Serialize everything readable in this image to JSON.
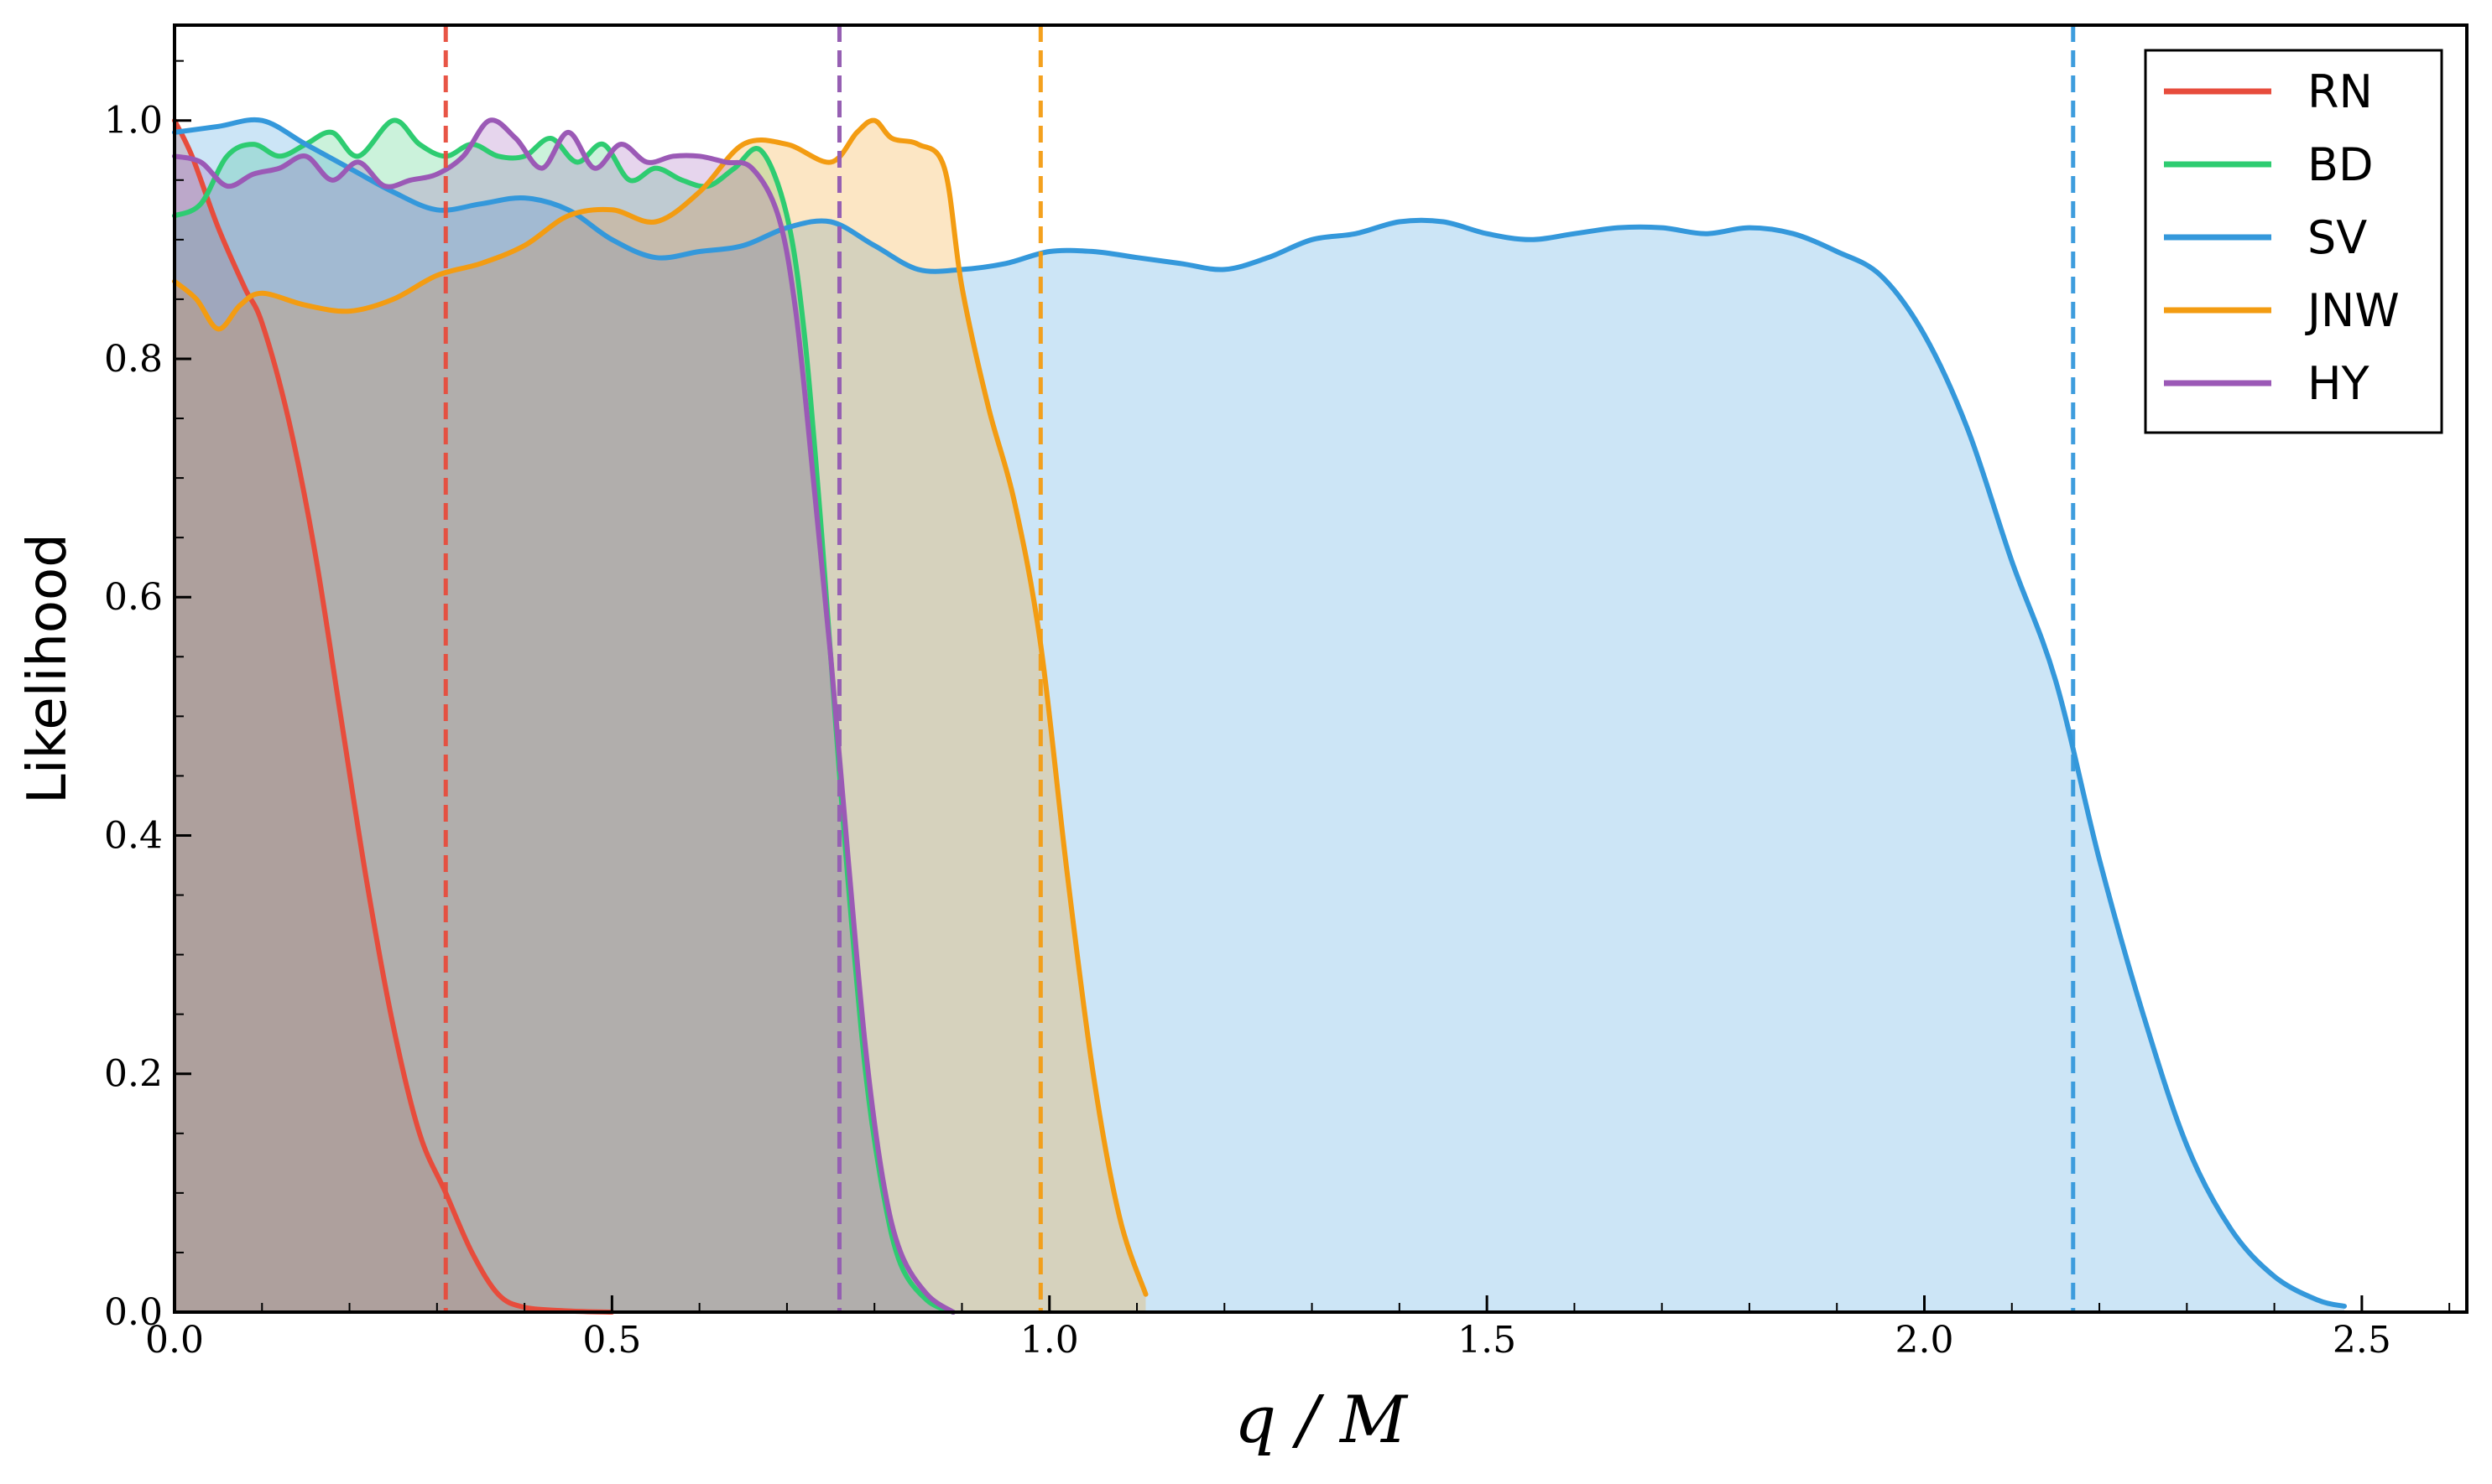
{
  "chart_data": {
    "type": "area",
    "xlabel": "q / M",
    "ylabel": "Likelihood",
    "xlim": [
      0,
      2.62
    ],
    "ylim": [
      0,
      1.08
    ],
    "x_ticks": [
      0.0,
      0.5,
      1.0,
      1.5,
      2.0,
      2.5
    ],
    "x_tick_labels": [
      "0.0",
      "0.5",
      "1.0",
      "1.5",
      "2.0",
      "2.5"
    ],
    "y_ticks": [
      0.0,
      0.2,
      0.4,
      0.6,
      0.8,
      1.0
    ],
    "y_tick_labels": [
      "0.0",
      "0.2",
      "0.4",
      "0.6",
      "0.8",
      "1.0"
    ],
    "legend_position": "top-right",
    "grid": false,
    "series": [
      {
        "name": "RN",
        "color": "#e74c3c",
        "threshold": 0.31,
        "x": [
          0.0,
          0.02,
          0.05,
          0.08,
          0.1,
          0.13,
          0.16,
          0.19,
          0.22,
          0.25,
          0.28,
          0.31,
          0.34,
          0.37,
          0.4,
          0.45,
          0.5
        ],
        "y": [
          1.0,
          0.97,
          0.91,
          0.86,
          0.83,
          0.75,
          0.64,
          0.5,
          0.36,
          0.24,
          0.15,
          0.1,
          0.05,
          0.015,
          0.004,
          0.001,
          0.0
        ]
      },
      {
        "name": "BD",
        "color": "#2ecc71",
        "threshold": 0.76,
        "x": [
          0.0,
          0.03,
          0.06,
          0.09,
          0.12,
          0.15,
          0.18,
          0.21,
          0.25,
          0.28,
          0.31,
          0.34,
          0.37,
          0.4,
          0.43,
          0.46,
          0.49,
          0.52,
          0.55,
          0.58,
          0.61,
          0.64,
          0.67,
          0.7,
          0.72,
          0.74,
          0.755,
          0.77,
          0.79,
          0.81,
          0.83,
          0.86,
          0.89
        ],
        "y": [
          0.92,
          0.93,
          0.97,
          0.98,
          0.97,
          0.98,
          0.99,
          0.97,
          1.0,
          0.98,
          0.97,
          0.98,
          0.97,
          0.97,
          0.985,
          0.965,
          0.98,
          0.95,
          0.96,
          0.95,
          0.945,
          0.96,
          0.975,
          0.92,
          0.82,
          0.65,
          0.5,
          0.36,
          0.2,
          0.1,
          0.04,
          0.01,
          0.0
        ]
      },
      {
        "name": "SV",
        "color": "#3498db",
        "threshold": 2.17,
        "x": [
          0.0,
          0.05,
          0.1,
          0.15,
          0.2,
          0.25,
          0.3,
          0.35,
          0.4,
          0.45,
          0.5,
          0.55,
          0.6,
          0.65,
          0.7,
          0.75,
          0.8,
          0.85,
          0.9,
          0.95,
          1.0,
          1.05,
          1.1,
          1.15,
          1.2,
          1.25,
          1.3,
          1.35,
          1.4,
          1.45,
          1.5,
          1.55,
          1.6,
          1.65,
          1.7,
          1.75,
          1.8,
          1.85,
          1.9,
          1.95,
          2.0,
          2.05,
          2.1,
          2.15,
          2.2,
          2.25,
          2.3,
          2.35,
          2.4,
          2.45,
          2.48
        ],
        "y": [
          0.99,
          0.995,
          1.0,
          0.98,
          0.96,
          0.94,
          0.925,
          0.93,
          0.935,
          0.925,
          0.9,
          0.885,
          0.89,
          0.895,
          0.91,
          0.915,
          0.895,
          0.875,
          0.875,
          0.88,
          0.89,
          0.89,
          0.885,
          0.88,
          0.875,
          0.885,
          0.9,
          0.905,
          0.915,
          0.915,
          0.905,
          0.9,
          0.905,
          0.91,
          0.91,
          0.905,
          0.91,
          0.905,
          0.89,
          0.87,
          0.82,
          0.74,
          0.63,
          0.53,
          0.38,
          0.25,
          0.14,
          0.07,
          0.03,
          0.01,
          0.005
        ]
      },
      {
        "name": "JNW",
        "color": "#f39c12",
        "threshold": 0.99,
        "x": [
          0.0,
          0.025,
          0.05,
          0.075,
          0.1,
          0.15,
          0.2,
          0.25,
          0.3,
          0.35,
          0.4,
          0.45,
          0.5,
          0.55,
          0.6,
          0.65,
          0.7,
          0.75,
          0.78,
          0.8,
          0.82,
          0.85,
          0.88,
          0.9,
          0.93,
          0.96,
          0.99,
          1.02,
          1.05,
          1.08,
          1.11
        ],
        "y": [
          0.865,
          0.85,
          0.825,
          0.845,
          0.855,
          0.845,
          0.84,
          0.85,
          0.87,
          0.88,
          0.895,
          0.92,
          0.925,
          0.915,
          0.94,
          0.98,
          0.98,
          0.965,
          0.99,
          1.0,
          0.985,
          0.98,
          0.96,
          0.86,
          0.76,
          0.68,
          0.56,
          0.37,
          0.2,
          0.08,
          0.015
        ]
      },
      {
        "name": "HY",
        "color": "#9b59b6",
        "threshold": 0.76,
        "x": [
          0.0,
          0.03,
          0.06,
          0.09,
          0.12,
          0.15,
          0.18,
          0.21,
          0.24,
          0.27,
          0.3,
          0.33,
          0.36,
          0.39,
          0.42,
          0.45,
          0.48,
          0.51,
          0.54,
          0.57,
          0.6,
          0.63,
          0.66,
          0.69,
          0.71,
          0.73,
          0.75,
          0.77,
          0.79,
          0.81,
          0.83,
          0.86,
          0.89
        ],
        "y": [
          0.97,
          0.965,
          0.945,
          0.955,
          0.96,
          0.97,
          0.95,
          0.965,
          0.945,
          0.95,
          0.955,
          0.97,
          1.0,
          0.985,
          0.96,
          0.99,
          0.96,
          0.98,
          0.965,
          0.97,
          0.97,
          0.965,
          0.96,
          0.92,
          0.84,
          0.7,
          0.55,
          0.38,
          0.22,
          0.11,
          0.05,
          0.015,
          0.0
        ]
      }
    ]
  }
}
